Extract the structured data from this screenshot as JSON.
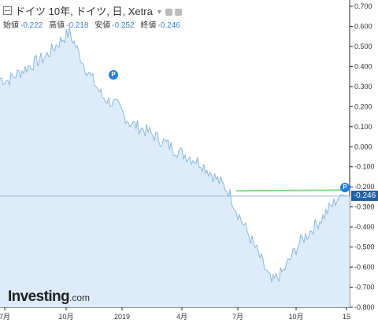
{
  "header": {
    "title": "ドイツ 10年, ドイツ, 日, Xetra",
    "ohlc": [
      {
        "label": "始値",
        "value": "-0.222"
      },
      {
        "label": "高値",
        "value": "-0.218"
      },
      {
        "label": "安値",
        "value": "-0.252"
      },
      {
        "label": "終値",
        "value": "-0.246"
      }
    ]
  },
  "logo": {
    "main": "Investing",
    "suffix": ".com"
  },
  "marker_label": "P",
  "last_price_label": "-0.246",
  "colors": {
    "line": "#8ab7e0",
    "fill": "#dcecfa",
    "last": "#1f5fa8",
    "level": "#7ee07e",
    "marker": "#1e7fe0"
  },
  "chart_data": {
    "type": "area",
    "title": "ドイツ 10年, ドイツ, 日, Xetra",
    "xlabel": "",
    "ylabel": "",
    "ylim": [
      -0.8,
      0.7
    ],
    "yticks": [
      "0.700",
      "0.600",
      "0.500",
      "0.400",
      "0.300",
      "0.200",
      "0.100",
      "0.000",
      "-0.100",
      "-0.200",
      "-0.300",
      "-0.400",
      "-0.500",
      "-0.600",
      "-0.700",
      "-0.800"
    ],
    "xticks": [
      "7月",
      "10月",
      "2019",
      "4月",
      "7月",
      "10月",
      "15"
    ],
    "grid": false,
    "x": [
      "2018-06",
      "2018-07",
      "2018-08",
      "2018-09",
      "2018-10",
      "2018-10-15",
      "2018-11",
      "2018-12",
      "2019-01",
      "2019-02",
      "2019-03",
      "2019-04",
      "2019-05",
      "2019-06",
      "2019-07",
      "2019-08",
      "2019-08-15",
      "2019-09",
      "2019-10",
      "2019-11",
      "2019-12",
      "2020-01"
    ],
    "values": [
      0.34,
      0.33,
      0.4,
      0.45,
      0.52,
      0.57,
      0.4,
      0.25,
      0.2,
      0.12,
      0.07,
      -0.02,
      -0.08,
      -0.22,
      -0.33,
      -0.55,
      -0.68,
      -0.62,
      -0.48,
      -0.35,
      -0.24,
      -0.246
    ],
    "last_value": -0.246
  }
}
